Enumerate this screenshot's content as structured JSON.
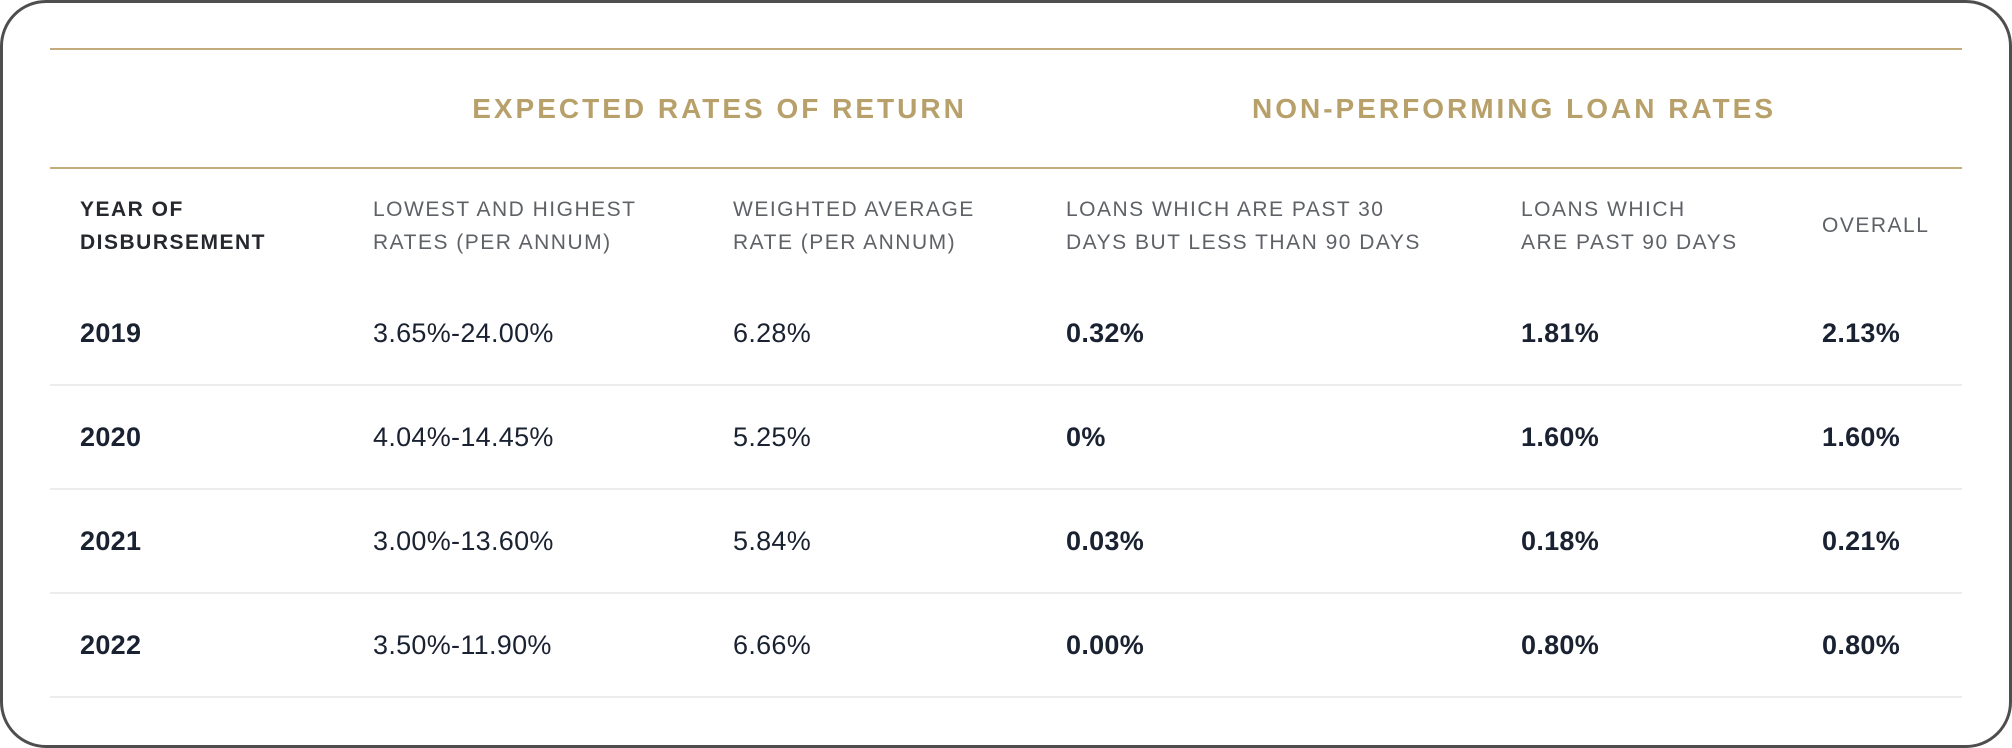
{
  "colors": {
    "gold_line": "#C3AB7B",
    "gold_text": "#B7A06A",
    "dark_text": "#1A2232",
    "gray_header": "#5E6166",
    "dark_header": "#26282E",
    "divider": "#ECECEC",
    "card_bg": "#FFFFFF",
    "edge": "#4E4E4E"
  },
  "table": {
    "group_headers": [
      "EXPECTED RATES OF RETURN",
      "NON-PERFORMING LOAN RATES"
    ],
    "columns": [
      "YEAR OF\nDISBURSEMENT",
      "LOWEST AND HIGHEST\nRATES (PER ANNUM)",
      "WEIGHTED AVERAGE\nRATE (PER ANNUM)",
      "LOANS WHICH ARE PAST 30\nDAYS BUT LESS THAN 90 DAYS",
      "LOANS WHICH\nARE PAST 90 DAYS",
      "OVERALL"
    ],
    "rows": [
      {
        "year": "2019",
        "lowest_highest": "3.65%-24.00%",
        "weighted_avg": "6.28%",
        "past_30_less_90": "0.32%",
        "past_90": "1.81%",
        "overall": "2.13%"
      },
      {
        "year": "2020",
        "lowest_highest": "4.04%-14.45%",
        "weighted_avg": "5.25%",
        "past_30_less_90": "0%",
        "past_90": "1.60%",
        "overall": "1.60%"
      },
      {
        "year": "2021",
        "lowest_highest": "3.00%-13.60%",
        "weighted_avg": "5.84%",
        "past_30_less_90": "0.03%",
        "past_90": "0.18%",
        "overall": "0.21%"
      },
      {
        "year": "2022",
        "lowest_highest": "3.50%-11.90%",
        "weighted_avg": "6.66%",
        "past_30_less_90": "0.00%",
        "past_90": "0.80%",
        "overall": "0.80%"
      }
    ]
  },
  "chart_data": {
    "type": "table",
    "title": "",
    "row_key": "YEAR OF DISBURSEMENT",
    "column_groups": [
      {
        "label": "EXPECTED RATES OF RETURN",
        "columns": [
          "LOWEST AND HIGHEST RATES (PER ANNUM)",
          "WEIGHTED AVERAGE RATE (PER ANNUM)"
        ]
      },
      {
        "label": "NON-PERFORMING LOAN RATES",
        "columns": [
          "LOANS WHICH ARE PAST 30 DAYS BUT LESS THAN 90 DAYS",
          "LOANS WHICH ARE PAST 90 DAYS",
          "OVERALL"
        ]
      }
    ],
    "rows": [
      {
        "YEAR OF DISBURSEMENT": "2019",
        "LOWEST AND HIGHEST RATES (PER ANNUM)": "3.65%-24.00%",
        "WEIGHTED AVERAGE RATE (PER ANNUM)": "6.28%",
        "LOANS WHICH ARE PAST 30 DAYS BUT LESS THAN 90 DAYS": "0.32%",
        "LOANS WHICH ARE PAST 90 DAYS": "1.81%",
        "OVERALL": "2.13%"
      },
      {
        "YEAR OF DISBURSEMENT": "2020",
        "LOWEST AND HIGHEST RATES (PER ANNUM)": "4.04%-14.45%",
        "WEIGHTED AVERAGE RATE (PER ANNUM)": "5.25%",
        "LOANS WHICH ARE PAST 30 DAYS BUT LESS THAN 90 DAYS": "0%",
        "LOANS WHICH ARE PAST 90 DAYS": "1.60%",
        "OVERALL": "1.60%"
      },
      {
        "YEAR OF DISBURSEMENT": "2021",
        "LOWEST AND HIGHEST RATES (PER ANNUM)": "3.00%-13.60%",
        "WEIGHTED AVERAGE RATE (PER ANNUM)": "5.84%",
        "LOANS WHICH ARE PAST 30 DAYS BUT LESS THAN 90 DAYS": "0.03%",
        "LOANS WHICH ARE PAST 90 DAYS": "0.18%",
        "OVERALL": "0.21%"
      },
      {
        "YEAR OF DISBURSEMENT": "2022",
        "LOWEST AND HIGHEST RATES (PER ANNUM)": "3.50%-11.90%",
        "WEIGHTED AVERAGE RATE (PER ANNUM)": "6.66%",
        "LOANS WHICH ARE PAST 30 DAYS BUT LESS THAN 90 DAYS": "0.00%",
        "LOANS WHICH ARE PAST 90 DAYS": "0.80%",
        "OVERALL": "0.80%"
      }
    ]
  }
}
